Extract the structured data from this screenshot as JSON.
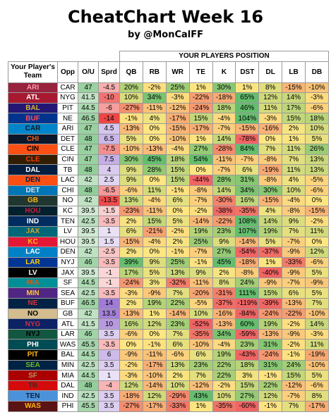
{
  "header": {
    "title": "CheatChart Week 16",
    "subtitle": "by @MonCalFF"
  },
  "table": {
    "group_header": "YOUR PLAYERS POSITION",
    "columns": [
      "Your Player's Team",
      "Opp",
      "O/U",
      "Sprd",
      "QB",
      "RB",
      "WR",
      "TE",
      "K",
      "DST",
      "DL",
      "LB",
      "DB"
    ],
    "rows": [
      {
        "team": "ARI",
        "bg": "#97233f",
        "fg": "#ff9aa8",
        "opp": "CAR",
        "ou": 47,
        "sprd": -4.5,
        "values": [
          "20%",
          "-2%",
          "25%",
          "1%",
          "30%",
          "1%",
          "8%",
          "-15%",
          "-10%"
        ]
      },
      {
        "team": "ATL",
        "bg": "#a71930",
        "fg": "#ffffff",
        "opp": "NYG",
        "ou": 41.5,
        "sprd": -10,
        "values": [
          "10%",
          "34%",
          "-3%",
          "-22%",
          "-18%",
          "65%",
          "12%",
          "14%",
          "-3%"
        ]
      },
      {
        "team": "BAL",
        "bg": "#241773",
        "fg": "#d0b240",
        "opp": "PIT",
        "ou": 44.5,
        "sprd": -6,
        "values": [
          "-27%",
          "-11%",
          "-12%",
          "-24%",
          "18%",
          "46%",
          "11%",
          "17%",
          "-6%"
        ]
      },
      {
        "team": "BUF",
        "bg": "#00338d",
        "fg": "#ff4d5e",
        "opp": "NE",
        "ou": 46.5,
        "sprd": -14,
        "values": [
          "-1%",
          "4%",
          "-17%",
          "15%",
          "-4%",
          "104%",
          "-3%",
          "15%",
          "18%"
        ]
      },
      {
        "team": "CAR",
        "bg": "#0085ca",
        "fg": "#101820",
        "opp": "ARI",
        "ou": 47,
        "sprd": 4.5,
        "values": [
          "-13%",
          "0%",
          "-15%",
          "-17%",
          "-7%",
          "-15%",
          "-16%",
          "2%",
          "10%"
        ]
      },
      {
        "team": "CHI",
        "bg": "#0b162a",
        "fg": "#e8601c",
        "opp": "DET",
        "ou": 48,
        "sprd": 6.5,
        "values": [
          "5%",
          "0%",
          "-10%",
          "1%",
          "14%",
          "-78%",
          "0%",
          "1%",
          "5%"
        ]
      },
      {
        "team": "CIN",
        "bg": "#fb4f14",
        "fg": "#000000",
        "opp": "CLE",
        "ou": 47,
        "sprd": -7.5,
        "values": [
          "-10%",
          "-13%",
          "-4%",
          "27%",
          "-28%",
          "84%",
          "7%",
          "11%",
          "26%"
        ]
      },
      {
        "team": "CLE",
        "bg": "#311d00",
        "fg": "#ff3c00",
        "opp": "CIN",
        "ou": 47,
        "sprd": 7.5,
        "values": [
          "30%",
          "45%",
          "18%",
          "54%",
          "-11%",
          "-7%",
          "-8%",
          "7%",
          "13%"
        ]
      },
      {
        "team": "DAL",
        "bg": "#041e42",
        "fg": "#ffffff",
        "opp": "TB",
        "ou": 48,
        "sprd": 4,
        "values": [
          "9%",
          "28%",
          "15%",
          "0%",
          "-7%",
          "6%",
          "-19%",
          "11%",
          "13%"
        ]
      },
      {
        "team": "DEN",
        "bg": "#fb4f14",
        "fg": "#002244",
        "opp": "LAC",
        "ou": 42,
        "sprd": 2.5,
        "values": [
          "9%",
          "0%",
          "15%",
          "-44%",
          "28%",
          "31%",
          "-8%",
          "4%",
          "-5%"
        ]
      },
      {
        "team": "DET",
        "bg": "#0076b6",
        "fg": "#e0e0e0",
        "opp": "CHI",
        "ou": 48,
        "sprd": -6.5,
        "values": [
          "-6%",
          "11%",
          "-1%",
          "-8%",
          "14%",
          "34%",
          "30%",
          "10%",
          "-6%"
        ]
      },
      {
        "team": "GB",
        "bg": "#203731",
        "fg": "#ffb612",
        "opp": "NO",
        "ou": 42,
        "sprd": -13.5,
        "values": [
          "13%",
          "-4%",
          "6%",
          "-7%",
          "-30%",
          "16%",
          "-15%",
          "-4%",
          "0%"
        ]
      },
      {
        "team": "HOU",
        "bg": "#03202f",
        "fg": "#c8203a",
        "opp": "KC",
        "ou": 39.5,
        "sprd": -1.5,
        "values": [
          "-23%",
          "-11%",
          "0%",
          "-2%",
          "-38%",
          "-35%",
          "4%",
          "-8%",
          "-15%"
        ]
      },
      {
        "team": "IND",
        "bg": "#002c5f",
        "fg": "#ffffff",
        "opp": "TEN",
        "ou": 42.5,
        "sprd": -3.5,
        "values": [
          "2%",
          "15%",
          "5%",
          "-14%",
          "-22%",
          "108%",
          "14%",
          "9%",
          "-2%"
        ]
      },
      {
        "team": "JAX",
        "bg": "#006778",
        "fg": "#d7a22a",
        "opp": "LV",
        "ou": 39.5,
        "sprd": 1,
        "values": [
          "6%",
          "-21%",
          "-2%",
          "19%",
          "23%",
          "107%",
          "19%",
          "7%",
          "11%"
        ]
      },
      {
        "team": "KC",
        "bg": "#e31837",
        "fg": "#ffb81c",
        "opp": "HOU",
        "ou": 39.5,
        "sprd": 1.5,
        "values": [
          "-15%",
          "-4%",
          "2%",
          "25%",
          "9%",
          "-14%",
          "5%",
          "-7%",
          "0%"
        ]
      },
      {
        "team": "LAC",
        "bg": "#0080c6",
        "fg": "#ffffff",
        "opp": "DEN",
        "ou": 42,
        "sprd": -2.5,
        "values": [
          "2%",
          "0%",
          "-1%",
          "-7%",
          "27%",
          "-54%",
          "-37%",
          "-9%",
          "12%"
        ]
      },
      {
        "team": "LAR",
        "bg": "#003594",
        "fg": "#ffd100",
        "opp": "NYJ",
        "ou": 46,
        "sprd": -3.5,
        "values": [
          "39%",
          "9%",
          "25%",
          "-1%",
          "45%",
          "-18%",
          "1%",
          "-33%",
          "-6%"
        ]
      },
      {
        "team": "LV",
        "bg": "#000000",
        "fg": "#ffffff",
        "opp": "JAX",
        "ou": 39.5,
        "sprd": -1,
        "values": [
          "17%",
          "5%",
          "13%",
          "9%",
          "2%",
          "-8%",
          "-40%",
          "-9%",
          "5%"
        ]
      },
      {
        "team": "MIA",
        "bg": "#008e97",
        "fg": "#fc4c02",
        "opp": "SF",
        "ou": 44.5,
        "sprd": -1,
        "values": [
          "-24%",
          "3%",
          "-32%",
          "-11%",
          "8%",
          "24%",
          "-9%",
          "-7%",
          "-9%"
        ]
      },
      {
        "team": "MIN",
        "bg": "#4f2683",
        "fg": "#ffc62f",
        "opp": "SEA",
        "ou": 42.5,
        "sprd": -3.5,
        "values": [
          "-3%",
          "-9%",
          "7%",
          "-20%",
          "-31%",
          "111%",
          "15%",
          "6%",
          "5%"
        ]
      },
      {
        "team": "NE",
        "bg": "#002244",
        "fg": "#e0303e",
        "opp": "BUF",
        "ou": 46.5,
        "sprd": 14,
        "values": [
          "2%",
          "19%",
          "22%",
          "-5%",
          "-37%",
          "-119%",
          "-39%",
          "-13%",
          "7%"
        ]
      },
      {
        "team": "NO",
        "bg": "#d3bc8d",
        "fg": "#000000",
        "opp": "GB",
        "ou": 42,
        "sprd": 13.5,
        "values": [
          "-13%",
          "1%",
          "-14%",
          "10%",
          "-16%",
          "-84%",
          "-24%",
          "-22%",
          "-10%"
        ]
      },
      {
        "team": "NYG",
        "bg": "#0b2265",
        "fg": "#d0303e",
        "opp": "ATL",
        "ou": 41.5,
        "sprd": 10,
        "values": [
          "16%",
          "12%",
          "23%",
          "-52%",
          "-13%",
          "60%",
          "19%",
          "-2%",
          "14%"
        ]
      },
      {
        "team": "NYJ",
        "bg": "#125740",
        "fg": "#000000",
        "opp": "LAR",
        "ou": 46,
        "sprd": 3.5,
        "values": [
          "-6%",
          "0%",
          "7%",
          "-35%",
          "34%",
          "-59%",
          "-13%",
          "-9%",
          "-3%"
        ]
      },
      {
        "team": "PHI",
        "bg": "#004c54",
        "fg": "#ffffff",
        "opp": "WAS",
        "ou": 45.5,
        "sprd": -3.5,
        "values": [
          "0%",
          "-1%",
          "6%",
          "-10%",
          "-4%",
          "23%",
          "31%",
          "-2%",
          "11%"
        ]
      },
      {
        "team": "PIT",
        "bg": "#000000",
        "fg": "#ffb612",
        "opp": "BAL",
        "ou": 44.5,
        "sprd": 6,
        "values": [
          "-9%",
          "-11%",
          "-6%",
          "6%",
          "19%",
          "-43%",
          "-24%",
          "-1%",
          "-19%"
        ]
      },
      {
        "team": "SEA",
        "bg": "#002244",
        "fg": "#69be28",
        "opp": "MIN",
        "ou": 42.5,
        "sprd": 3.5,
        "values": [
          "-2%",
          "-17%",
          "13%",
          "23%",
          "22%",
          "18%",
          "31%",
          "24%",
          "-10%"
        ]
      },
      {
        "team": "SF",
        "bg": "#aa0000",
        "fg": "#b3995d",
        "opp": "MIA",
        "ou": 44.5,
        "sprd": 1,
        "values": [
          "-3%",
          "-10%",
          "2%",
          "7%",
          "22%",
          "3%",
          "-1%",
          "15%",
          "5%"
        ]
      },
      {
        "team": "TB",
        "bg": "#d50a0a",
        "fg": "#34302b",
        "opp": "DAL",
        "ou": 48,
        "sprd": -4,
        "values": [
          "12%",
          "-14%",
          "10%",
          "-12%",
          "-2%",
          "15%",
          "22%",
          "-12%",
          "-6%"
        ]
      },
      {
        "team": "TEN",
        "bg": "#4b92db",
        "fg": "#0c2340",
        "opp": "IND",
        "ou": 42.5,
        "sprd": 3.5,
        "values": [
          "-18%",
          "12%",
          "-29%",
          "43%",
          "10%",
          "27%",
          "12%",
          "-7%",
          "8%"
        ]
      },
      {
        "team": "WAS",
        "bg": "#5a1414",
        "fg": "#ffb612",
        "opp": "PHI",
        "ou": 45.5,
        "sprd": 3.5,
        "values": [
          "-27%",
          "-17%",
          "-33%",
          "1%",
          "-35%",
          "-60%",
          "-1%",
          "7%",
          "-17%"
        ]
      }
    ]
  }
}
